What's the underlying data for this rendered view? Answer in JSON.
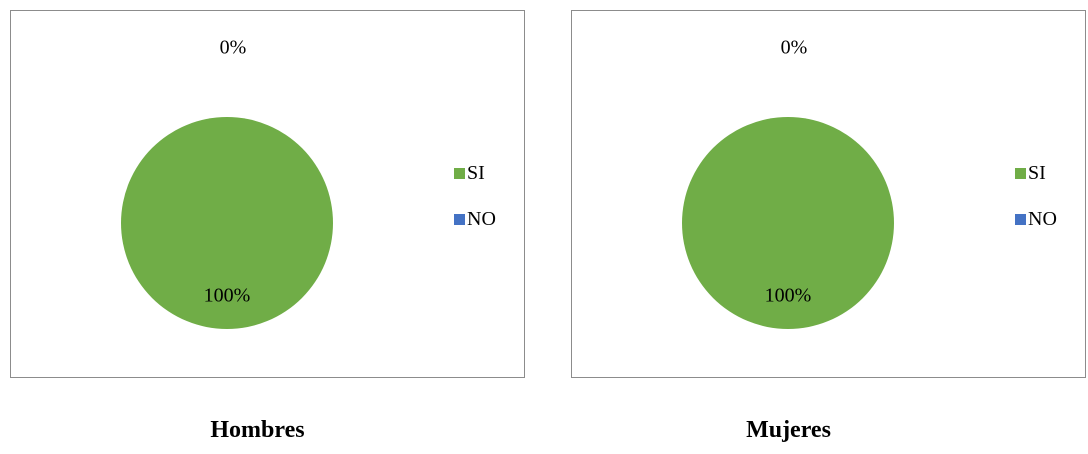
{
  "chart_data": [
    {
      "type": "pie",
      "title": "",
      "caption": "Hombres",
      "slices": [
        {
          "label": "SI",
          "value": 100,
          "data_label": "100%",
          "color": "#70ad47"
        },
        {
          "label": "NO",
          "value": 0,
          "data_label": "0%",
          "color": "#4472c4"
        }
      ],
      "legend": "right"
    },
    {
      "type": "pie",
      "title": "",
      "caption": "Mujeres",
      "slices": [
        {
          "label": "SI",
          "value": 100,
          "data_label": "100%",
          "color": "#70ad47"
        },
        {
          "label": "NO",
          "value": 0,
          "data_label": "0%",
          "color": "#4472c4"
        }
      ],
      "legend": "right"
    }
  ]
}
